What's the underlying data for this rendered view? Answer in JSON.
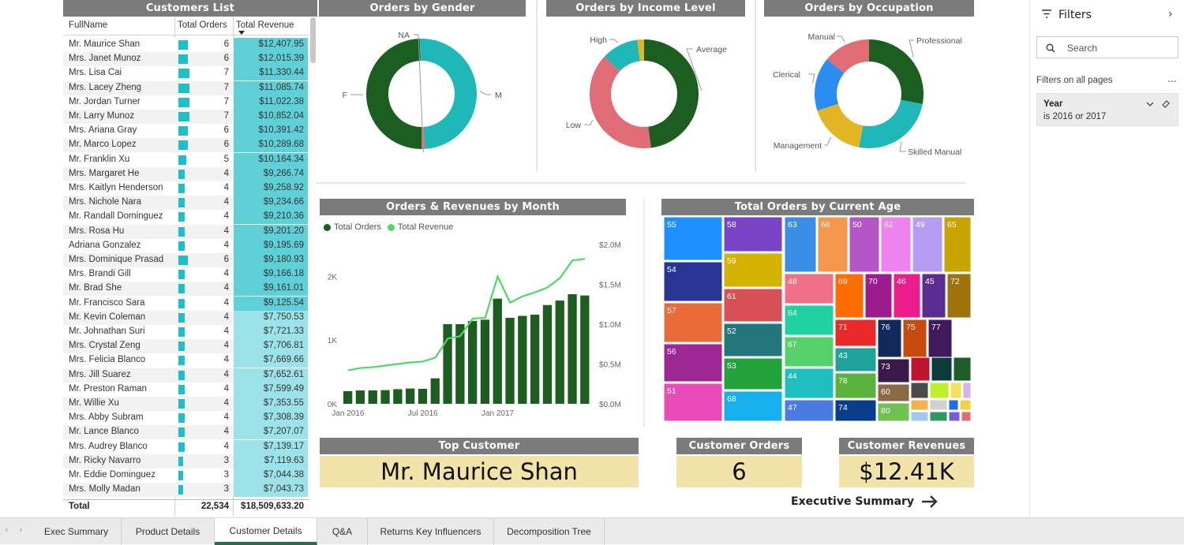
{
  "headers": {
    "customers_list": "Customers List",
    "orders_by_gender": "Orders by Gender",
    "orders_by_income": "Orders by Income Level",
    "orders_by_occupation": "Orders by Occupation",
    "orders_rev_month": "Orders & Revenues by Month",
    "orders_by_age": "Total Orders by Current Age",
    "top_customer": "Top Customer",
    "customer_orders": "Customer Orders",
    "customer_revenues": "Customer Revenues"
  },
  "table": {
    "columns": [
      "FullName",
      "Total Orders",
      "Total Revenue"
    ],
    "max_orders": 7,
    "rows": [
      {
        "name": "Mr. Maurice Shan",
        "orders": 6,
        "revenue": "$12,407.95"
      },
      {
        "name": "Mrs. Janet Munoz",
        "orders": 6,
        "revenue": "$12,015.39"
      },
      {
        "name": "Mrs. Lisa Cai",
        "orders": 7,
        "revenue": "$11,330.44"
      },
      {
        "name": "Mrs. Lacey Zheng",
        "orders": 7,
        "revenue": "$11,085.74"
      },
      {
        "name": "Mr. Jordan Turner",
        "orders": 7,
        "revenue": "$11,022.38"
      },
      {
        "name": "Mr. Larry Munoz",
        "orders": 7,
        "revenue": "$10,852.04"
      },
      {
        "name": "Mrs. Ariana Gray",
        "orders": 6,
        "revenue": "$10,391.42"
      },
      {
        "name": "Mr. Marco Lopez",
        "orders": 6,
        "revenue": "$10,289.68"
      },
      {
        "name": "Mr. Franklin Xu",
        "orders": 5,
        "revenue": "$10,164.34"
      },
      {
        "name": "Mrs. Margaret He",
        "orders": 4,
        "revenue": "$9,266.74"
      },
      {
        "name": "Mrs. Kaitlyn Henderson",
        "orders": 4,
        "revenue": "$9,258.92"
      },
      {
        "name": "Mrs. Nichole Nara",
        "orders": 4,
        "revenue": "$9,234.66"
      },
      {
        "name": "Mr. Randall Dominguez",
        "orders": 4,
        "revenue": "$9,210.36"
      },
      {
        "name": "Mrs. Rosa Hu",
        "orders": 4,
        "revenue": "$9,201.20"
      },
      {
        "name": "Adriana Gonzalez",
        "orders": 4,
        "revenue": "$9,195.69"
      },
      {
        "name": "Mrs. Dominique Prasad",
        "orders": 6,
        "revenue": "$9,180.93"
      },
      {
        "name": "Mrs. Brandi Gill",
        "orders": 4,
        "revenue": "$9,166.18"
      },
      {
        "name": "Mr. Brad She",
        "orders": 4,
        "revenue": "$9,161.01"
      },
      {
        "name": "Mr. Francisco Sara",
        "orders": 4,
        "revenue": "$9,125.54"
      },
      {
        "name": "Mr. Kevin Coleman",
        "orders": 4,
        "revenue": "$7,750.53"
      },
      {
        "name": "Mr. Johnathan Suri",
        "orders": 4,
        "revenue": "$7,721.33"
      },
      {
        "name": "Mrs. Crystal Zeng",
        "orders": 4,
        "revenue": "$7,706.81"
      },
      {
        "name": "Mrs. Felicia Blanco",
        "orders": 4,
        "revenue": "$7,669.66"
      },
      {
        "name": "Mrs. Jill Suarez",
        "orders": 4,
        "revenue": "$7,652.61"
      },
      {
        "name": "Mr. Preston Raman",
        "orders": 4,
        "revenue": "$7,599.49"
      },
      {
        "name": "Mr. Willie Xu",
        "orders": 4,
        "revenue": "$7,353.55"
      },
      {
        "name": "Mrs. Abby Subram",
        "orders": 4,
        "revenue": "$7,308.39"
      },
      {
        "name": "Mr. Lance Blanco",
        "orders": 4,
        "revenue": "$7,207.07"
      },
      {
        "name": "Mrs. Audrey Blanco",
        "orders": 4,
        "revenue": "$7,139.17"
      },
      {
        "name": "Mr. Ricky Navarro",
        "orders": 3,
        "revenue": "$7,119.63"
      },
      {
        "name": "Mr. Eddie Dominguez",
        "orders": 3,
        "revenue": "$7,044.38"
      },
      {
        "name": "Mrs. Molly Madan",
        "orders": 3,
        "revenue": "$7,043.73"
      }
    ],
    "total_label": "Total",
    "total_orders": "22,534",
    "total_revenue": "$18,509,633.20"
  },
  "chart_data": [
    {
      "type": "donut",
      "title": "Orders by Gender",
      "slices": [
        {
          "label": "F",
          "value": 49.5,
          "color": "#1b5e20"
        },
        {
          "label": "M",
          "value": 49.5,
          "color": "#1fb8b8"
        },
        {
          "label": "NA",
          "value": 1.0,
          "color": "#e06c6c"
        }
      ]
    },
    {
      "type": "donut",
      "title": "Orders by Income Level",
      "slices": [
        {
          "label": "Average",
          "value": 48,
          "color": "#1b5e20"
        },
        {
          "label": "Low",
          "value": 39,
          "color": "#e06c75"
        },
        {
          "label": "High",
          "value": 11,
          "color": "#1fb8b8"
        },
        {
          "label": "",
          "value": 2,
          "color": "#e2b623"
        }
      ]
    },
    {
      "type": "donut",
      "title": "Orders by Occupation",
      "slices": [
        {
          "label": "Professional",
          "value": 28,
          "color": "#1b5e20"
        },
        {
          "label": "Skilled Manual",
          "value": 25,
          "color": "#1fb8b8"
        },
        {
          "label": "Management",
          "value": 17,
          "color": "#e2b623"
        },
        {
          "label": "Clerical",
          "value": 16,
          "color": "#2b8df0"
        },
        {
          "label": "Manual",
          "value": 14,
          "color": "#e06c75"
        }
      ]
    },
    {
      "type": "combo",
      "title": "Orders & Revenues by Month",
      "legend": [
        "Total Orders",
        "Total Revenue"
      ],
      "bar_color": "#1b5e20",
      "line_color": "#4cd964",
      "x_ticks": [
        "Jan 2016",
        "Jul 2016",
        "Jan 2017"
      ],
      "y_left_ticks": [
        "0K",
        "1K",
        "2K"
      ],
      "y_right_ticks": [
        "$0.0M",
        "$0.5M",
        "$1.0M",
        "$1.5M",
        "$2.0M"
      ],
      "y_left_max": 2500,
      "y_right_max": 2.0,
      "orders": [
        200,
        210,
        210,
        215,
        230,
        240,
        235,
        400,
        1250,
        1250,
        1300,
        1320,
        1650,
        1350,
        1380,
        1400,
        1550,
        1620,
        1720,
        1700
      ],
      "revenue": [
        0.42,
        0.45,
        0.46,
        0.48,
        0.5,
        0.52,
        0.53,
        0.58,
        0.82,
        0.85,
        1.07,
        1.08,
        1.6,
        1.27,
        1.35,
        1.4,
        1.46,
        1.58,
        1.8,
        1.82
      ]
    },
    {
      "type": "treemap",
      "title": "Total Orders by Current Age",
      "labels": [
        "55",
        "58",
        "63",
        "66",
        "50",
        "62",
        "49",
        "65",
        "54",
        "59",
        "61",
        "57",
        "52",
        "48",
        "69",
        "70",
        "46",
        "45",
        "72",
        "64",
        "71",
        "76",
        "75",
        "77",
        "56",
        "53",
        "67",
        "44",
        "43",
        "73",
        "78",
        "60",
        "51",
        "68",
        "47",
        "74",
        "80"
      ]
    }
  ],
  "kpis": {
    "top_customer": "Mr. Maurice Shan",
    "customer_orders": "6",
    "customer_revenues": "$12.41K"
  },
  "nav": {
    "exec_summary_link": "Executive Summary"
  },
  "filters": {
    "title": "Filters",
    "search_placeholder": "Search",
    "section": "Filters on all pages",
    "more": "...",
    "card_title": "Year",
    "card_value": "is 2016 or 2017"
  },
  "tabs": [
    "Exec Summary",
    "Product Details",
    "Customer Details",
    "Q&A",
    "Returns Key Influencers",
    "Decomposition Tree"
  ],
  "active_tab": "Customer Details"
}
